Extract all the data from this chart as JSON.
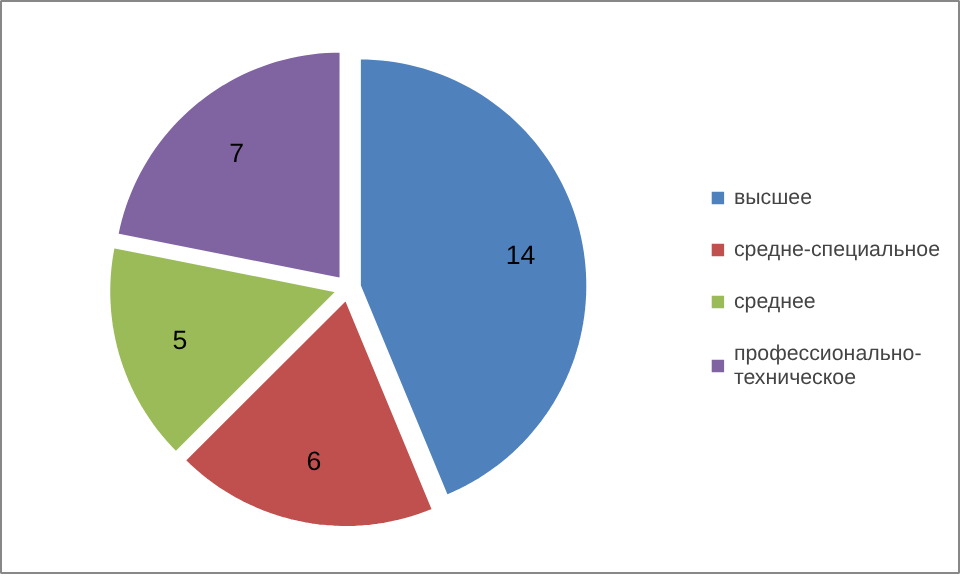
{
  "chart_data": {
    "type": "pie",
    "categories": [
      "высшее",
      "средне-специальное",
      "среднее",
      "профессионально-техническое"
    ],
    "values": [
      14,
      6,
      5,
      7
    ],
    "colors": [
      "#4f81bd",
      "#c0504d",
      "#9bbb59",
      "#8064a2"
    ],
    "data_labels": true,
    "legend": "right"
  }
}
